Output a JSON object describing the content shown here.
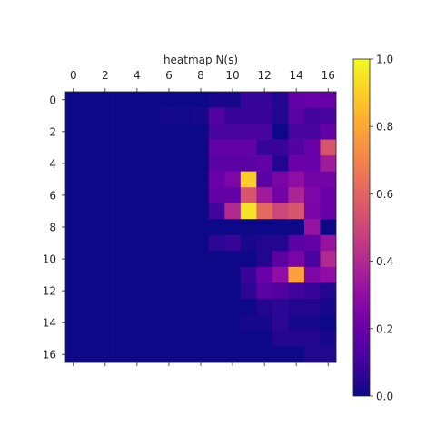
{
  "chart_data": {
    "type": "heatmap",
    "title": "heatmap N(s)",
    "colormap": "plasma",
    "x_ticks": [
      "0",
      "2",
      "4",
      "6",
      "8",
      "10",
      "12",
      "14",
      "16"
    ],
    "y_ticks": [
      "0",
      "2",
      "4",
      "6",
      "8",
      "10",
      "12",
      "14",
      "16"
    ],
    "colorbar": {
      "range": [
        0.0,
        1.0
      ],
      "ticks": [
        "0.0",
        "0.2",
        "0.4",
        "0.6",
        "0.8",
        "1.0"
      ]
    },
    "values": [
      [
        0.0,
        0.0,
        0.0,
        0.0,
        0.0,
        0.0,
        0.0,
        0.0,
        0.0,
        0.02,
        0.02,
        0.08,
        0.08,
        0.04,
        0.18,
        0.2,
        0.19
      ],
      [
        0.0,
        0.0,
        0.0,
        0.0,
        0.0,
        0.0,
        0.02,
        0.01,
        0.02,
        0.14,
        0.08,
        0.08,
        0.08,
        0.04,
        0.16,
        0.1,
        0.12
      ],
      [
        0.0,
        0.0,
        0.0,
        0.0,
        0.0,
        0.0,
        0.0,
        0.0,
        0.0,
        0.12,
        0.12,
        0.12,
        0.12,
        0.0,
        0.12,
        0.12,
        0.18
      ],
      [
        0.0,
        0.0,
        0.0,
        0.0,
        0.0,
        0.0,
        0.0,
        0.0,
        0.0,
        0.18,
        0.18,
        0.18,
        0.08,
        0.08,
        0.14,
        0.2,
        0.55
      ],
      [
        0.0,
        0.0,
        0.0,
        0.0,
        0.0,
        0.0,
        0.0,
        0.0,
        0.0,
        0.16,
        0.16,
        0.16,
        0.18,
        0.04,
        0.2,
        0.2,
        0.35
      ],
      [
        0.0,
        0.0,
        0.0,
        0.0,
        0.0,
        0.0,
        0.0,
        0.0,
        0.0,
        0.2,
        0.25,
        0.9,
        0.16,
        0.24,
        0.3,
        0.22,
        0.22
      ],
      [
        0.0,
        0.0,
        0.0,
        0.0,
        0.0,
        0.0,
        0.0,
        0.0,
        0.0,
        0.18,
        0.18,
        0.55,
        0.35,
        0.22,
        0.38,
        0.25,
        0.2
      ],
      [
        0.0,
        0.0,
        0.0,
        0.0,
        0.0,
        0.0,
        0.0,
        0.0,
        0.0,
        0.1,
        0.4,
        0.95,
        0.62,
        0.5,
        0.55,
        0.24,
        0.2
      ],
      [
        0.0,
        0.0,
        0.0,
        0.0,
        0.0,
        0.0,
        0.0,
        0.0,
        0.0,
        0.0,
        0.0,
        0.0,
        0.0,
        0.0,
        0.0,
        0.32,
        0.0
      ],
      [
        0.0,
        0.0,
        0.0,
        0.0,
        0.0,
        0.0,
        0.0,
        0.0,
        0.0,
        0.06,
        0.08,
        0.02,
        0.04,
        0.04,
        0.16,
        0.18,
        0.32
      ],
      [
        0.0,
        0.0,
        0.0,
        0.0,
        0.0,
        0.0,
        0.0,
        0.0,
        0.0,
        0.0,
        0.0,
        0.0,
        0.04,
        0.16,
        0.24,
        0.12,
        0.4
      ],
      [
        0.0,
        0.0,
        0.0,
        0.0,
        0.0,
        0.0,
        0.0,
        0.0,
        0.0,
        0.0,
        0.0,
        0.08,
        0.2,
        0.3,
        0.78,
        0.25,
        0.3
      ],
      [
        0.0,
        0.0,
        0.0,
        0.0,
        0.0,
        0.0,
        0.0,
        0.0,
        0.0,
        0.0,
        0.0,
        0.06,
        0.16,
        0.14,
        0.1,
        0.08,
        0.04
      ],
      [
        0.0,
        0.0,
        0.0,
        0.0,
        0.0,
        0.0,
        0.0,
        0.0,
        0.0,
        0.0,
        0.0,
        0.0,
        0.04,
        0.06,
        0.04,
        0.04,
        0.02
      ],
      [
        0.0,
        0.0,
        0.0,
        0.0,
        0.0,
        0.0,
        0.0,
        0.0,
        0.0,
        0.0,
        0.0,
        0.02,
        0.02,
        0.06,
        0.02,
        0.02,
        0.0
      ],
      [
        0.0,
        0.0,
        0.0,
        0.0,
        0.0,
        0.0,
        0.0,
        0.0,
        0.0,
        0.0,
        0.0,
        0.0,
        0.0,
        0.04,
        0.04,
        0.04,
        0.02
      ],
      [
        0.0,
        0.0,
        0.0,
        0.0,
        0.0,
        0.0,
        0.0,
        0.0,
        0.0,
        0.0,
        0.0,
        0.0,
        0.0,
        0.0,
        0.0,
        0.04,
        0.04
      ]
    ]
  }
}
